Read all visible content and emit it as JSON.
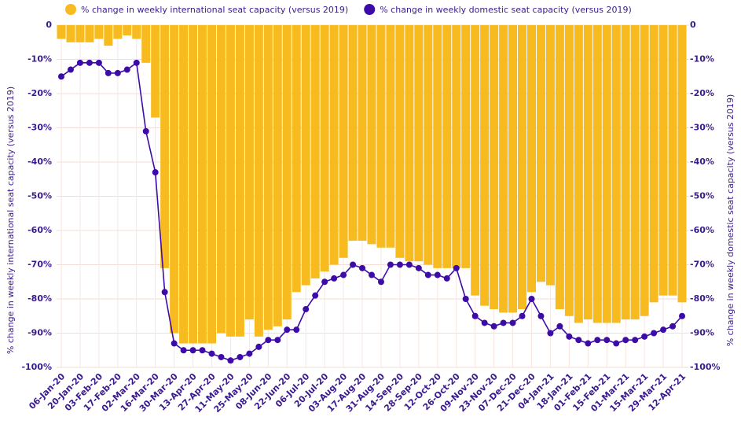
{
  "chart_data": {
    "type": "bar",
    "categories": [
      "06-Jan-20",
      null,
      "20-Jan-20",
      null,
      "03-Feb-20",
      null,
      "17-Feb-20",
      null,
      "02-Mar-20",
      null,
      "16-Mar-20",
      null,
      "30-Mar-20",
      null,
      "13-Apr-20",
      null,
      "27-Apr-20",
      null,
      "11-May-20",
      null,
      "25-May-20",
      null,
      "08-Jun-20",
      null,
      "22-Jun-20",
      null,
      "06-Jul-20",
      null,
      "20-Jul-20",
      null,
      "03-Aug-20",
      null,
      "17-Aug-20",
      null,
      "31-Aug-20",
      null,
      "14-Sep-20",
      null,
      "28-Sep-20",
      null,
      "12-Oct-20",
      null,
      "26-Oct-20",
      null,
      "09-Nov-20",
      null,
      "23-Nov-20",
      null,
      "07-Dec-20",
      null,
      "21-Dec-20",
      null,
      "04-Jan-21",
      null,
      "18-Jan-21",
      null,
      "01-Feb-21",
      null,
      "15-Feb-21",
      null,
      "01-Mar-21",
      null,
      "15-Mar-21",
      null,
      "29-Mar-21",
      null,
      "12-Apr-21"
    ],
    "series": [
      {
        "name": "% change in weekly international seat capacity (versus 2019)",
        "type": "bar",
        "color": "#f7bb1f",
        "values": [
          -4,
          -5,
          -5,
          -5,
          -4,
          -6,
          -4,
          -3,
          -4,
          -11,
          -27,
          -71,
          -90,
          -93,
          -93,
          -93,
          -93,
          -90,
          -91,
          -91,
          -86,
          -91,
          -89,
          -88,
          -86,
          -78,
          -76,
          -74,
          -72,
          -70,
          -68,
          -63,
          -63,
          -64,
          -65,
          -65,
          -68,
          -69,
          -69,
          -70,
          -71,
          -71,
          -71,
          -71,
          -79,
          -82,
          -83,
          -84,
          -84,
          -83,
          -78,
          -75,
          -76,
          -83,
          -85,
          -87,
          -86,
          -87,
          -87,
          -87,
          -86,
          -86,
          -85,
          -81,
          -79,
          -79,
          -81
        ]
      },
      {
        "name": "% change in weekly domestic seat capacity (versus 2019)",
        "type": "line",
        "axis": "y2",
        "color": "#3d0ca8",
        "values": [
          -15,
          -13,
          -11,
          -11,
          -11,
          -14,
          -14,
          -13,
          -11,
          -31,
          -43,
          -78,
          -93,
          -95,
          -95,
          -95,
          -96,
          -97,
          -98,
          -97,
          -96,
          -94,
          -92,
          -92,
          -89,
          -89,
          -83,
          -79,
          -75,
          -74,
          -73,
          -70,
          -71,
          -73,
          -75,
          -70,
          -70,
          -70,
          -71,
          -73,
          -73,
          -74,
          -71,
          -80,
          -85,
          -87,
          -88,
          -87,
          -87,
          -85,
          -80,
          -85,
          -90,
          -88,
          -91,
          -92,
          -93,
          -92,
          -92,
          -93,
          -92,
          -92,
          -91,
          -90,
          -89,
          -88,
          -85
        ]
      }
    ],
    "ylabel": "% change in weekly international seat capacity (versus 2019)",
    "y2label": "% change in weekly domestic seat capacity (versus 2019)",
    "ylim": [
      -100,
      0
    ],
    "yticks": [
      0,
      {
        "value": -10,
        "label": "-10%"
      },
      {
        "value": -20,
        "label": "-20%"
      },
      {
        "value": -30,
        "label": "-30%"
      },
      {
        "value": -40,
        "label": "-40%"
      },
      {
        "value": -50,
        "label": "-50%"
      },
      {
        "value": -60,
        "label": "-60%"
      },
      {
        "value": -70,
        "label": "-70%"
      },
      {
        "value": -80,
        "label": "-80%"
      },
      {
        "value": -90,
        "label": "-90%"
      },
      {
        "value": -100,
        "label": "-100%"
      }
    ],
    "y2lim": [
      -100,
      0
    ],
    "y2ticks": [
      0,
      {
        "value": -10,
        "label": "-10%"
      },
      {
        "value": -20,
        "label": "-20%"
      },
      {
        "value": -30,
        "label": "-30%"
      },
      {
        "value": -40,
        "label": "-40%"
      },
      {
        "value": -50,
        "label": "-50%"
      },
      {
        "value": -60,
        "label": "-60%"
      },
      {
        "value": -70,
        "label": "-70%"
      },
      {
        "value": -80,
        "label": "-80%"
      },
      {
        "value": -90,
        "label": "-90%"
      },
      {
        "value": -100,
        "label": "-100%"
      }
    ],
    "grid": true,
    "legend": "top"
  }
}
